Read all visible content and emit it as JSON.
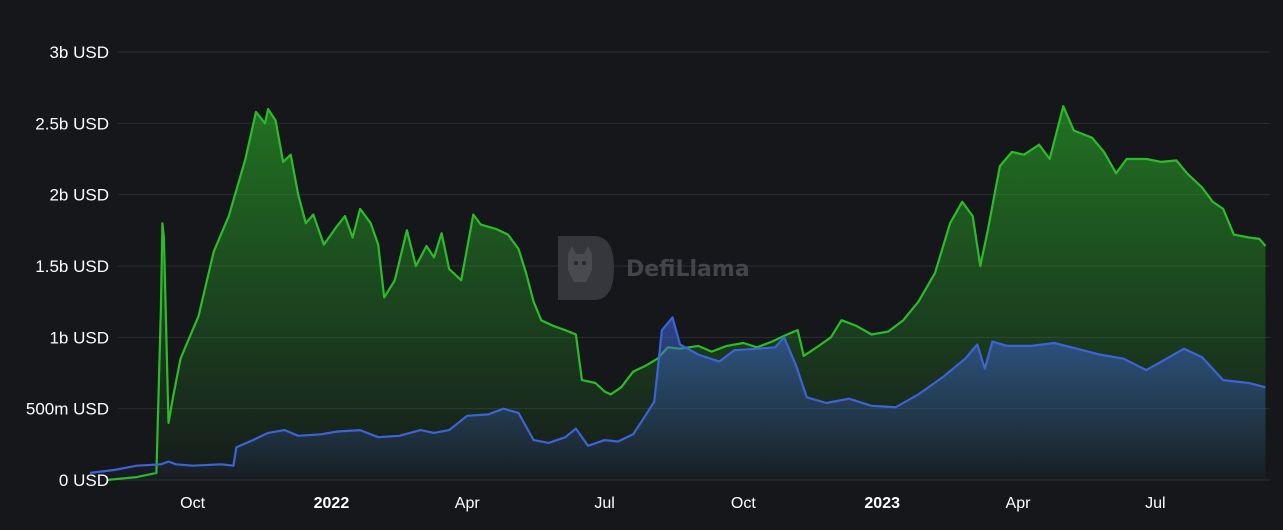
{
  "watermark": "DefiLlama",
  "colors": {
    "background": "#16171b",
    "series_green": "#2bbd28",
    "series_blue": "#3d63d6",
    "grid": "#2a2c31",
    "text": "#ffffff"
  },
  "chart_data": {
    "type": "area",
    "title": "",
    "xlabel": "",
    "ylabel": "",
    "ylim": [
      0,
      3000000000
    ],
    "xlim": [
      "2021-07-25",
      "2023-09-15"
    ],
    "grid": "horizontal",
    "yticks": [
      {
        "value": 0,
        "label": "0 USD"
      },
      {
        "value": 500000000,
        "label": "500m USD"
      },
      {
        "value": 1000000000,
        "label": "1b USD"
      },
      {
        "value": 1500000000,
        "label": "1.5b USD"
      },
      {
        "value": 2000000000,
        "label": "2b USD"
      },
      {
        "value": 2500000000,
        "label": "2.5b USD"
      },
      {
        "value": 3000000000,
        "label": "3b USD"
      }
    ],
    "xticks": [
      {
        "date": "2021-10-01",
        "label": "Oct",
        "bold": false
      },
      {
        "date": "2022-01-01",
        "label": "2022",
        "bold": true
      },
      {
        "date": "2022-04-01",
        "label": "Apr",
        "bold": false
      },
      {
        "date": "2022-07-01",
        "label": "Jul",
        "bold": false
      },
      {
        "date": "2022-10-01",
        "label": "Oct",
        "bold": false
      },
      {
        "date": "2023-01-01",
        "label": "2023",
        "bold": true
      },
      {
        "date": "2023-04-01",
        "label": "Apr",
        "bold": false
      },
      {
        "date": "2023-07-01",
        "label": "Jul",
        "bold": false
      }
    ],
    "series": [
      {
        "color": "#2bbd28",
        "points": [
          [
            "2021-08-05",
            0
          ],
          [
            "2021-08-25",
            20000000
          ],
          [
            "2021-09-07",
            50000000
          ],
          [
            "2021-09-10",
            1200000000
          ],
          [
            "2021-09-11",
            1800000000
          ],
          [
            "2021-09-12",
            1700000000
          ],
          [
            "2021-09-15",
            400000000
          ],
          [
            "2021-09-18",
            580000000
          ],
          [
            "2021-09-23",
            850000000
          ],
          [
            "2021-10-05",
            1150000000
          ],
          [
            "2021-10-15",
            1600000000
          ],
          [
            "2021-10-25",
            1850000000
          ],
          [
            "2021-11-05",
            2250000000
          ],
          [
            "2021-11-12",
            2580000000
          ],
          [
            "2021-11-18",
            2500000000
          ],
          [
            "2021-11-20",
            2600000000
          ],
          [
            "2021-11-25",
            2520000000
          ],
          [
            "2021-11-30",
            2230000000
          ],
          [
            "2021-12-05",
            2280000000
          ],
          [
            "2021-12-10",
            2000000000
          ],
          [
            "2021-12-15",
            1800000000
          ],
          [
            "2021-12-20",
            1860000000
          ],
          [
            "2021-12-27",
            1650000000
          ],
          [
            "2022-01-04",
            1770000000
          ],
          [
            "2022-01-10",
            1850000000
          ],
          [
            "2022-01-15",
            1700000000
          ],
          [
            "2022-01-20",
            1900000000
          ],
          [
            "2022-01-27",
            1800000000
          ],
          [
            "2022-02-01",
            1650000000
          ],
          [
            "2022-02-05",
            1280000000
          ],
          [
            "2022-02-12",
            1400000000
          ],
          [
            "2022-02-20",
            1750000000
          ],
          [
            "2022-02-26",
            1500000000
          ],
          [
            "2022-03-05",
            1640000000
          ],
          [
            "2022-03-10",
            1560000000
          ],
          [
            "2022-03-15",
            1730000000
          ],
          [
            "2022-03-20",
            1480000000
          ],
          [
            "2022-03-28",
            1400000000
          ],
          [
            "2022-04-05",
            1860000000
          ],
          [
            "2022-04-10",
            1790000000
          ],
          [
            "2022-04-20",
            1760000000
          ],
          [
            "2022-04-28",
            1720000000
          ],
          [
            "2022-05-05",
            1620000000
          ],
          [
            "2022-05-10",
            1450000000
          ],
          [
            "2022-05-15",
            1250000000
          ],
          [
            "2022-05-20",
            1120000000
          ],
          [
            "2022-05-28",
            1080000000
          ],
          [
            "2022-06-05",
            1050000000
          ],
          [
            "2022-06-12",
            1020000000
          ],
          [
            "2022-06-16",
            700000000
          ],
          [
            "2022-06-25",
            680000000
          ],
          [
            "2022-07-01",
            620000000
          ],
          [
            "2022-07-05",
            600000000
          ],
          [
            "2022-07-12",
            650000000
          ],
          [
            "2022-07-20",
            760000000
          ],
          [
            "2022-07-28",
            800000000
          ],
          [
            "2022-08-05",
            850000000
          ],
          [
            "2022-08-12",
            930000000
          ],
          [
            "2022-08-20",
            920000000
          ],
          [
            "2022-09-01",
            940000000
          ],
          [
            "2022-09-10",
            900000000
          ],
          [
            "2022-09-20",
            940000000
          ],
          [
            "2022-10-01",
            960000000
          ],
          [
            "2022-10-10",
            930000000
          ],
          [
            "2022-10-20",
            970000000
          ],
          [
            "2022-10-30",
            1020000000
          ],
          [
            "2022-11-06",
            1050000000
          ],
          [
            "2022-11-10",
            870000000
          ],
          [
            "2022-11-20",
            940000000
          ],
          [
            "2022-11-28",
            1000000000
          ],
          [
            "2022-12-05",
            1120000000
          ],
          [
            "2022-12-15",
            1080000000
          ],
          [
            "2022-12-25",
            1020000000
          ],
          [
            "2023-01-05",
            1040000000
          ],
          [
            "2023-01-15",
            1120000000
          ],
          [
            "2023-01-25",
            1250000000
          ],
          [
            "2023-02-05",
            1450000000
          ],
          [
            "2023-02-15",
            1800000000
          ],
          [
            "2023-02-23",
            1950000000
          ],
          [
            "2023-03-02",
            1850000000
          ],
          [
            "2023-03-07",
            1500000000
          ],
          [
            "2023-03-12",
            1750000000
          ],
          [
            "2023-03-20",
            2200000000
          ],
          [
            "2023-03-28",
            2300000000
          ],
          [
            "2023-04-05",
            2280000000
          ],
          [
            "2023-04-15",
            2350000000
          ],
          [
            "2023-04-22",
            2250000000
          ],
          [
            "2023-05-01",
            2620000000
          ],
          [
            "2023-05-08",
            2450000000
          ],
          [
            "2023-05-20",
            2400000000
          ],
          [
            "2023-05-28",
            2300000000
          ],
          [
            "2023-06-05",
            2150000000
          ],
          [
            "2023-06-12",
            2250000000
          ],
          [
            "2023-06-25",
            2250000000
          ],
          [
            "2023-07-05",
            2230000000
          ],
          [
            "2023-07-15",
            2240000000
          ],
          [
            "2023-07-22",
            2150000000
          ],
          [
            "2023-08-01",
            2050000000
          ],
          [
            "2023-08-08",
            1950000000
          ],
          [
            "2023-08-15",
            1900000000
          ],
          [
            "2023-08-22",
            1720000000
          ],
          [
            "2023-09-01",
            1700000000
          ],
          [
            "2023-09-08",
            1690000000
          ],
          [
            "2023-09-12",
            1640000000
          ]
        ]
      },
      {
        "color": "#3d63d6",
        "points": [
          [
            "2021-07-25",
            50000000
          ],
          [
            "2021-08-10",
            70000000
          ],
          [
            "2021-08-25",
            100000000
          ],
          [
            "2021-09-10",
            110000000
          ],
          [
            "2021-09-15",
            130000000
          ],
          [
            "2021-09-20",
            110000000
          ],
          [
            "2021-10-01",
            100000000
          ],
          [
            "2021-10-20",
            110000000
          ],
          [
            "2021-10-28",
            100000000
          ],
          [
            "2021-10-30",
            230000000
          ],
          [
            "2021-11-10",
            280000000
          ],
          [
            "2021-11-20",
            330000000
          ],
          [
            "2021-12-01",
            350000000
          ],
          [
            "2021-12-10",
            310000000
          ],
          [
            "2021-12-25",
            320000000
          ],
          [
            "2022-01-05",
            340000000
          ],
          [
            "2022-01-20",
            350000000
          ],
          [
            "2022-02-01",
            300000000
          ],
          [
            "2022-02-15",
            310000000
          ],
          [
            "2022-03-01",
            350000000
          ],
          [
            "2022-03-10",
            330000000
          ],
          [
            "2022-03-20",
            350000000
          ],
          [
            "2022-04-01",
            450000000
          ],
          [
            "2022-04-15",
            460000000
          ],
          [
            "2022-04-25",
            500000000
          ],
          [
            "2022-05-05",
            470000000
          ],
          [
            "2022-05-15",
            280000000
          ],
          [
            "2022-05-25",
            260000000
          ],
          [
            "2022-06-05",
            300000000
          ],
          [
            "2022-06-12",
            360000000
          ],
          [
            "2022-06-20",
            240000000
          ],
          [
            "2022-07-01",
            280000000
          ],
          [
            "2022-07-10",
            270000000
          ],
          [
            "2022-07-20",
            320000000
          ],
          [
            "2022-07-28",
            450000000
          ],
          [
            "2022-08-03",
            550000000
          ],
          [
            "2022-08-08",
            1050000000
          ],
          [
            "2022-08-15",
            1140000000
          ],
          [
            "2022-08-20",
            950000000
          ],
          [
            "2022-09-01",
            880000000
          ],
          [
            "2022-09-15",
            830000000
          ],
          [
            "2022-09-25",
            910000000
          ],
          [
            "2022-10-10",
            920000000
          ],
          [
            "2022-10-22",
            930000000
          ],
          [
            "2022-10-28",
            1000000000
          ],
          [
            "2022-11-05",
            800000000
          ],
          [
            "2022-11-12",
            580000000
          ],
          [
            "2022-11-25",
            540000000
          ],
          [
            "2022-12-10",
            570000000
          ],
          [
            "2022-12-25",
            520000000
          ],
          [
            "2023-01-10",
            510000000
          ],
          [
            "2023-01-25",
            600000000
          ],
          [
            "2023-02-10",
            720000000
          ],
          [
            "2023-02-25",
            850000000
          ],
          [
            "2023-03-05",
            950000000
          ],
          [
            "2023-03-10",
            780000000
          ],
          [
            "2023-03-15",
            970000000
          ],
          [
            "2023-03-25",
            940000000
          ],
          [
            "2023-04-10",
            940000000
          ],
          [
            "2023-04-25",
            960000000
          ],
          [
            "2023-05-10",
            920000000
          ],
          [
            "2023-05-25",
            880000000
          ],
          [
            "2023-06-10",
            850000000
          ],
          [
            "2023-06-25",
            770000000
          ],
          [
            "2023-07-05",
            830000000
          ],
          [
            "2023-07-20",
            920000000
          ],
          [
            "2023-08-01",
            860000000
          ],
          [
            "2023-08-15",
            700000000
          ],
          [
            "2023-09-01",
            680000000
          ],
          [
            "2023-09-12",
            650000000
          ]
        ]
      }
    ]
  }
}
